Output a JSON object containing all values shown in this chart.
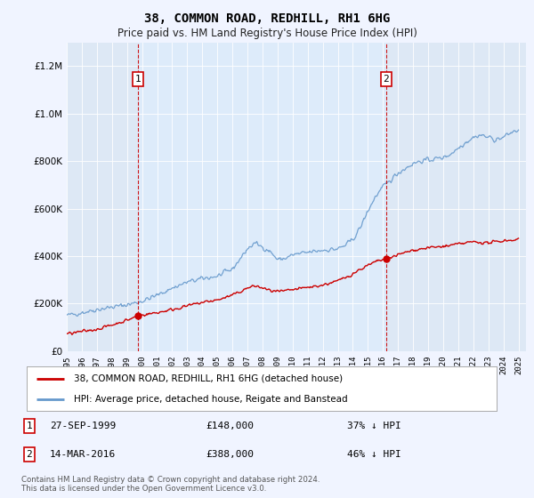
{
  "title": "38, COMMON ROAD, REDHILL, RH1 6HG",
  "subtitle": "Price paid vs. HM Land Registry's House Price Index (HPI)",
  "legend_red": "38, COMMON ROAD, REDHILL, RH1 6HG (detached house)",
  "legend_blue": "HPI: Average price, detached house, Reigate and Banstead",
  "sale1_date": "27-SEP-1999",
  "sale1_price": 148000,
  "sale1_label": "37% ↓ HPI",
  "sale1_year": 1999.73,
  "sale2_date": "14-MAR-2016",
  "sale2_price": 388000,
  "sale2_label": "46% ↓ HPI",
  "sale2_year": 2016.2,
  "footer": "Contains HM Land Registry data © Crown copyright and database right 2024.\nThis data is licensed under the Open Government Licence v3.0.",
  "background_color": "#f0f4ff",
  "plot_bg": "#dde8f5",
  "shaded_bg": "#ccddf5",
  "red_color": "#cc0000",
  "blue_color": "#6699cc",
  "ylim_max": 1300000,
  "xlim_start": 1995,
  "xlim_end": 2025.5
}
